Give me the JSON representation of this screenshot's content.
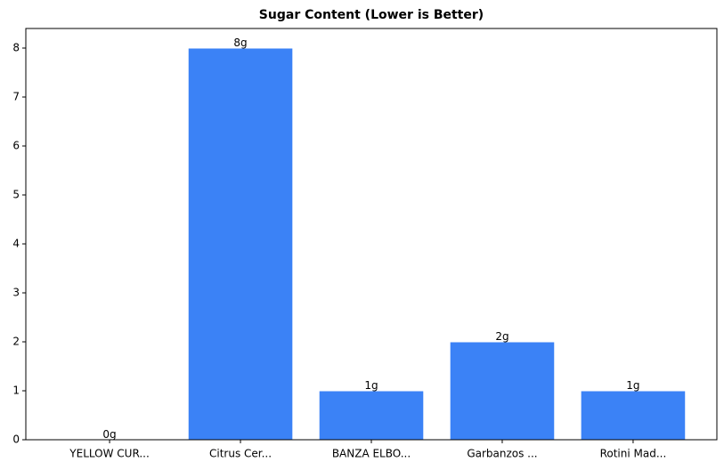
{
  "chart_data": {
    "type": "bar",
    "title": "Sugar Content (Lower is Better)",
    "categories": [
      "YELLOW CUR...",
      "Citrus Cer...",
      "BANZA ELBO...",
      "Garbanzos ...",
      "Rotini Mad..."
    ],
    "values": [
      0,
      8,
      1,
      2,
      1
    ],
    "value_labels": [
      "0g",
      "8g",
      "1g",
      "2g",
      "1g"
    ],
    "color": "#3b82f6",
    "ylim": [
      0,
      8.4
    ],
    "yticks": [
      0,
      1,
      2,
      3,
      4,
      5,
      6,
      7,
      8
    ],
    "grid": false
  }
}
